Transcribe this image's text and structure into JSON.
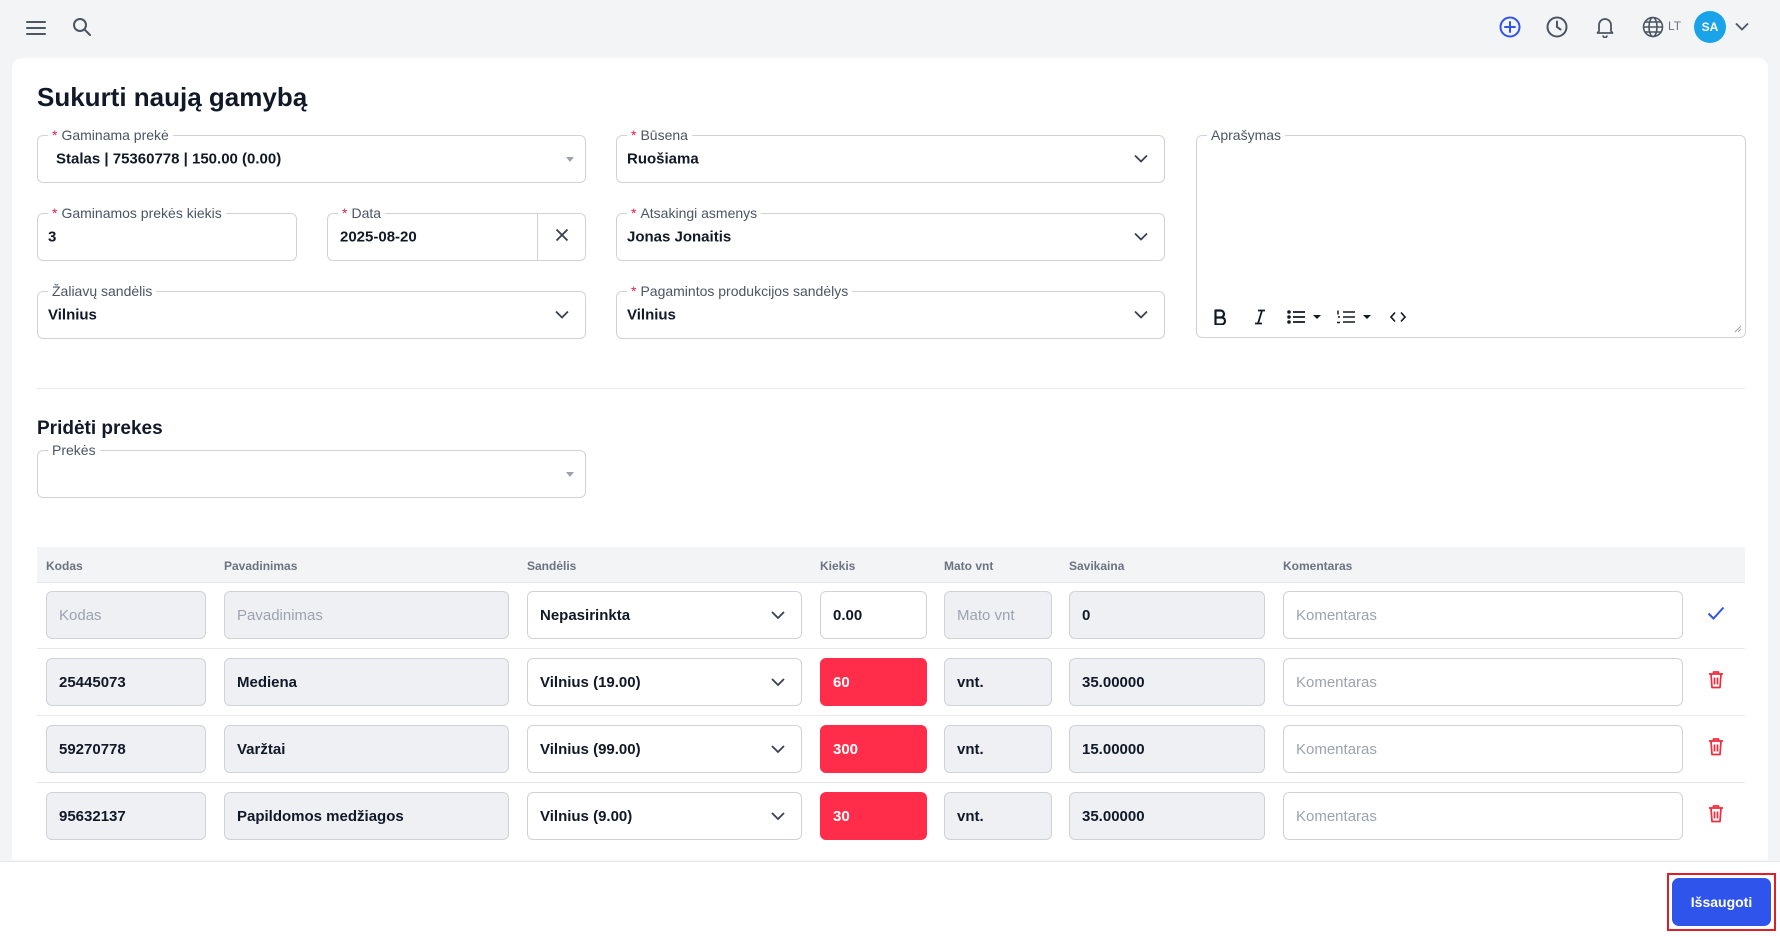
{
  "header": {
    "language": "LT",
    "avatar_initials": "SA"
  },
  "form": {
    "title": "Sukurti naują gamybą",
    "product": {
      "label": "Gaminama prekė",
      "value": "Stalas | 75360778 | 150.00 (0.00)"
    },
    "status": {
      "label": "Būsena",
      "value": "Ruošiama"
    },
    "description": {
      "label": "Aprašymas",
      "value": ""
    },
    "quantity": {
      "label": "Gaminamos prekės kiekis",
      "value": "3"
    },
    "date": {
      "label": "Data",
      "value": "2025-08-20"
    },
    "responsible": {
      "label": "Atsakingi asmenys",
      "value": "Jonas Jonaitis"
    },
    "raw_warehouse": {
      "label": "Žaliavų sandėlis",
      "value": "Vilnius"
    },
    "product_warehouse": {
      "label": "Pagamintos produkcijos sandėlys",
      "value": "Vilnius"
    }
  },
  "add_products": {
    "title": "Pridėti prekes",
    "products_label": "Prekės",
    "products_value": ""
  },
  "table": {
    "columns": [
      "Kodas",
      "Pavadinimas",
      "Sandėlis",
      "Kiekis",
      "Mato vnt",
      "Savikaina",
      "Komentaras"
    ],
    "new_row": {
      "code_placeholder": "Kodas",
      "name_placeholder": "Pavadinimas",
      "warehouse": "Nepasirinkta",
      "quantity": "0.00",
      "unit_placeholder": "Mato vnt",
      "cost": "0",
      "comment_placeholder": "Komentaras"
    },
    "rows": [
      {
        "code": "25445073",
        "name": "Mediena",
        "warehouse": "Vilnius (19.00)",
        "quantity": "60",
        "unit": "vnt.",
        "cost": "35.00000",
        "comment_placeholder": "Komentaras"
      },
      {
        "code": "59270778",
        "name": "Varžtai",
        "warehouse": "Vilnius (99.00)",
        "quantity": "300",
        "unit": "vnt.",
        "cost": "15.00000",
        "comment_placeholder": "Komentaras"
      },
      {
        "code": "95632137",
        "name": "Papildomos medžiagos",
        "warehouse": "Vilnius (9.00)",
        "quantity": "30",
        "unit": "vnt.",
        "cost": "35.00000",
        "comment_placeholder": "Komentaras"
      }
    ]
  },
  "footer": {
    "save_label": "Išsaugoti"
  },
  "colors": {
    "primary": "#2f54eb",
    "danger": "#ff2d4a",
    "avatar": "#1aa3e8"
  }
}
